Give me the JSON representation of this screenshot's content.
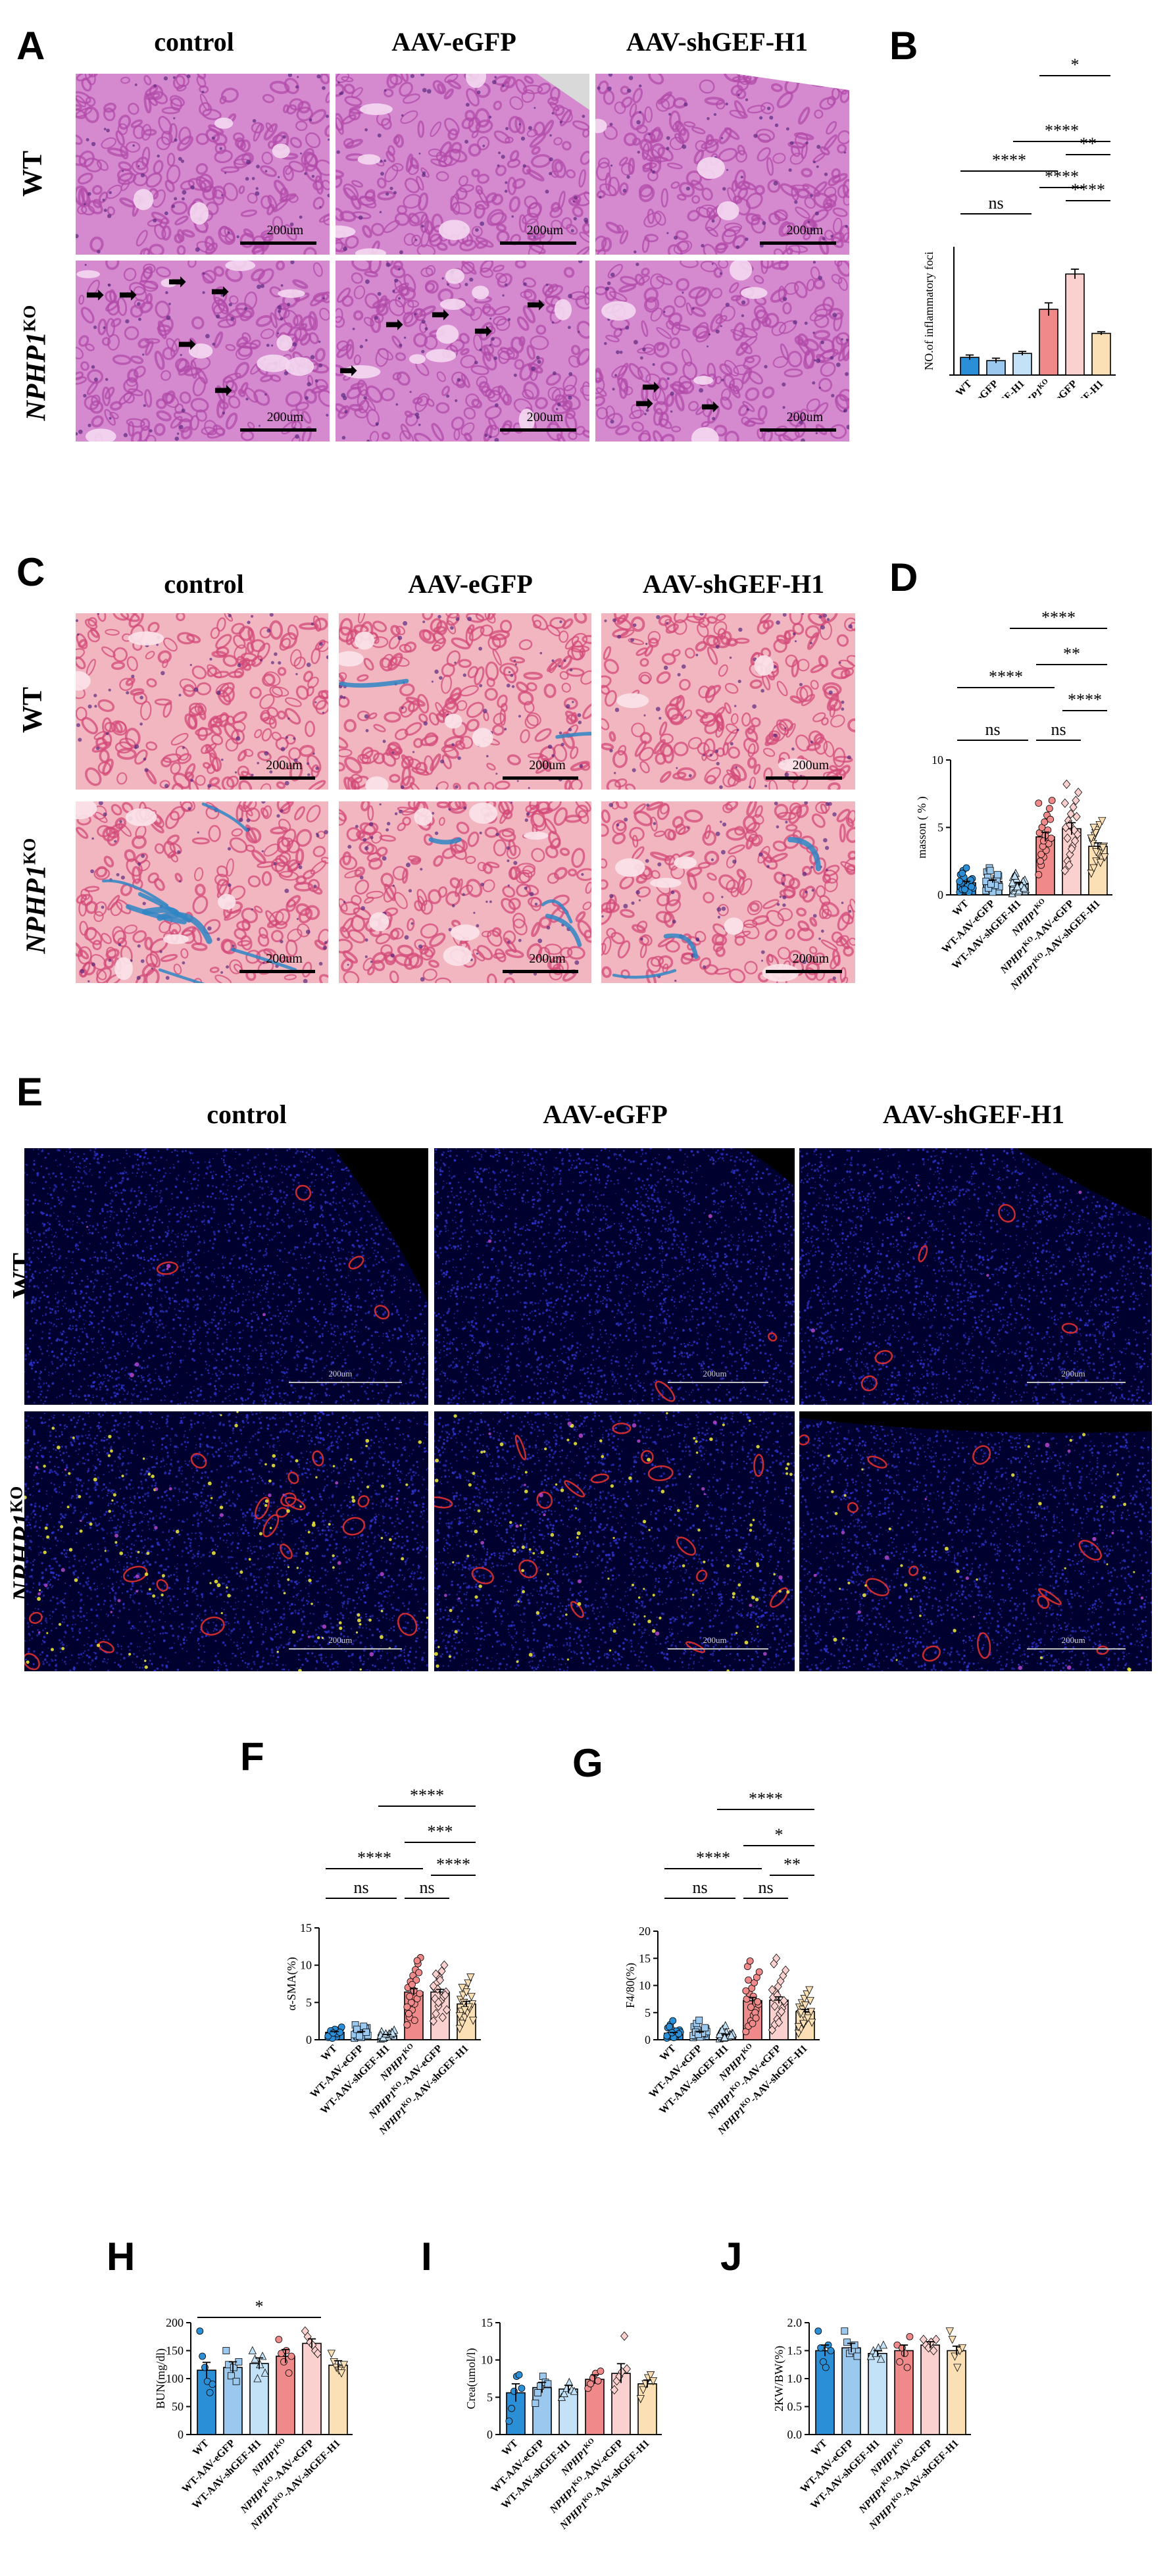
{
  "panels": {
    "A": "A",
    "B": "B",
    "C": "C",
    "D": "D",
    "E": "E",
    "F": "F",
    "G": "G",
    "H": "H",
    "I": "I",
    "J": "J"
  },
  "columns": [
    "control",
    "AAV-eGFP",
    "AAV-shGEF-H1"
  ],
  "rows": {
    "wt": "WT",
    "ko_gene": "NPHP1",
    "ko_sup": "KO"
  },
  "scalebar": "200um",
  "colors": {
    "he_bg": "#d58ad0",
    "he_tubule": "#b24aa8",
    "masson_bg": "#f2b6c0",
    "masson_tubule": "#d34a78",
    "masson_blue": "#2f86c4",
    "if_bg": "#00002e",
    "if_red": "#e0302f",
    "if_yellow": "#e6e03a",
    "wt": "#2a8fd6",
    "wt_egfp": "#9ac8ee",
    "wt_sh": "#c4e2f7",
    "ko": "#f08a8a",
    "ko_egfp": "#fbd1cf",
    "ko_sh": "#fbe0b5"
  },
  "group_labels": [
    {
      "text": "WT"
    },
    {
      "text": "WT-AAV-eGFP"
    },
    {
      "text": "WT-AAV-shGEF-H1"
    },
    {
      "gene": "NPHP1",
      "sup": "KO",
      "suffix": ""
    },
    {
      "gene": "NPHP1",
      "sup": "KO",
      "suffix": "-AAV-eGFP"
    },
    {
      "gene": "NPHP1",
      "sup": "KO",
      "suffix": "-AAV-shGEF-H1"
    }
  ],
  "chart_data": [
    {
      "panel": "B",
      "type": "bar",
      "ylabel": "NO.of inflammatory foci",
      "ylim": [
        0,
        8
      ],
      "yticks": [],
      "values": [
        1.1,
        0.9,
        1.35,
        4.1,
        6.3,
        2.6
      ],
      "errors": [
        0.15,
        0.15,
        0.12,
        0.4,
        0.3,
        0.1
      ],
      "points": [],
      "annotations": [
        {
          "from": 1,
          "to": 3,
          "label": "ns"
        },
        {
          "from": 5,
          "to": 6,
          "label": "****"
        },
        {
          "from": 1,
          "to": 4,
          "label": "****"
        },
        {
          "from": 5,
          "to": 6,
          "label": "**",
          "level": 2
        },
        {
          "from": 4,
          "to": 5,
          "label": "****"
        },
        {
          "from": 3,
          "to": 6,
          "label": "****"
        },
        {
          "from": 4,
          "to": 6,
          "label": "*"
        }
      ]
    },
    {
      "panel": "D",
      "type": "bar",
      "ylabel": "masson ( % )",
      "ylim": [
        0,
        10
      ],
      "yticks": [
        0,
        5,
        10
      ],
      "values": [
        0.9,
        1.0,
        0.8,
        4.3,
        4.9,
        3.6
      ],
      "errors": [
        0.1,
        0.1,
        0.1,
        0.35,
        0.45,
        0.25
      ],
      "points": [
        [
          0.2,
          0.4,
          0.6,
          0.8,
          1.0,
          1.2,
          1.5,
          1.8,
          0.3,
          0.7,
          1.1,
          0.5,
          0.9,
          1.3,
          2.0,
          0.2,
          0.6,
          1.0,
          1.6,
          0.4
        ],
        [
          0.3,
          0.5,
          0.8,
          1.0,
          1.2,
          1.4,
          1.7,
          2.0,
          0.4,
          0.9,
          1.1,
          0.6,
          1.3,
          1.8,
          0.2,
          0.7,
          1.5,
          1.0,
          0.5,
          0.8
        ],
        [
          0.1,
          0.3,
          0.5,
          0.7,
          0.9,
          1.1,
          1.3,
          1.6,
          0.2,
          0.6,
          1.0,
          0.4,
          0.8,
          1.2,
          0.3,
          0.7,
          0.5,
          0.9,
          1.4,
          0.6
        ],
        [
          1.5,
          2.2,
          2.8,
          3.3,
          3.8,
          4.2,
          4.6,
          5.0,
          5.4,
          5.9,
          6.4,
          7.0,
          2.5,
          3.6,
          4.4,
          4.8,
          5.6,
          6.8,
          3.0,
          4.0
        ],
        [
          1.8,
          2.5,
          3.0,
          3.6,
          4.0,
          4.5,
          5.0,
          5.5,
          6.0,
          6.5,
          7.0,
          7.6,
          8.2,
          2.2,
          3.4,
          4.8,
          5.8,
          6.8,
          4.2,
          5.2
        ],
        [
          1.6,
          2.0,
          2.5,
          3.0,
          3.3,
          3.6,
          4.0,
          4.4,
          4.8,
          5.2,
          5.5,
          2.8,
          3.8,
          4.6,
          3.1,
          2.4,
          3.5,
          4.2,
          5.0,
          3.2
        ]
      ],
      "annotations": [
        {
          "from": 1,
          "to": 3,
          "label": "ns"
        },
        {
          "from": 4,
          "to": 5,
          "label": "ns"
        },
        {
          "from": 5,
          "to": 6,
          "label": "****"
        },
        {
          "from": 1,
          "to": 4,
          "label": "****"
        },
        {
          "from": 4,
          "to": 6,
          "label": "**"
        },
        {
          "from": 3,
          "to": 6,
          "label": "****"
        }
      ]
    },
    {
      "panel": "F",
      "type": "bar",
      "ylabel": "α-SMA(%)",
      "ylim": [
        0,
        15
      ],
      "yticks": [
        0,
        5,
        10,
        15
      ],
      "values": [
        1.0,
        1.0,
        0.6,
        6.4,
        6.4,
        4.8
      ],
      "errors": [
        0.1,
        0.1,
        0.1,
        0.45,
        0.35,
        0.35
      ],
      "points": [
        [
          0.3,
          0.5,
          0.8,
          1.0,
          1.2,
          1.5,
          0.6,
          0.9,
          1.3,
          0.4,
          1.1,
          1.7,
          0.7,
          0.2,
          1.4,
          0.8,
          1.0,
          0.5,
          1.2,
          0.9
        ],
        [
          0.2,
          0.5,
          0.7,
          1.0,
          1.3,
          1.6,
          2.0,
          0.4,
          0.8,
          1.1,
          1.5,
          0.6,
          0.9,
          1.2,
          0.3,
          1.8,
          1.0,
          0.7,
          1.4,
          0.5
        ],
        [
          0.1,
          0.2,
          0.4,
          0.5,
          0.7,
          0.9,
          1.1,
          0.3,
          0.6,
          0.8,
          1.0,
          1.3,
          0.2,
          0.5,
          0.4,
          0.7,
          0.9,
          0.6,
          0.3,
          0.8
        ],
        [
          2.0,
          3.0,
          4.0,
          4.8,
          5.5,
          6.2,
          7.0,
          7.8,
          8.6,
          9.4,
          10.2,
          11.0,
          3.5,
          5.0,
          6.6,
          8.0,
          9.0,
          4.4,
          5.8,
          7.4,
          2.6,
          10.6
        ],
        [
          2.5,
          3.5,
          4.5,
          5.2,
          5.8,
          6.4,
          7.0,
          7.6,
          8.4,
          9.2,
          10.0,
          4.0,
          5.5,
          6.8,
          8.0,
          3.0,
          6.0,
          7.2,
          8.8,
          5.0
        ],
        [
          1.5,
          2.2,
          3.0,
          3.6,
          4.2,
          4.8,
          5.4,
          6.0,
          6.8,
          7.6,
          8.4,
          2.6,
          3.8,
          5.0,
          6.4,
          4.4,
          5.8,
          3.2,
          7.0,
          4.0
        ]
      ],
      "annotations": [
        {
          "from": 1,
          "to": 3,
          "label": "ns"
        },
        {
          "from": 4,
          "to": 5,
          "label": "ns"
        },
        {
          "from": 1,
          "to": 4,
          "label": "****"
        },
        {
          "from": 5,
          "to": 6,
          "label": "****"
        },
        {
          "from": 4,
          "to": 6,
          "label": "***"
        },
        {
          "from": 3,
          "to": 6,
          "label": "****"
        }
      ]
    },
    {
      "panel": "G",
      "type": "bar",
      "ylabel": "F4/80(%)",
      "ylim": [
        0,
        20
      ],
      "yticks": [
        0,
        5,
        10,
        15,
        20
      ],
      "values": [
        1.2,
        1.3,
        0.9,
        7.2,
        7.3,
        5.2
      ],
      "errors": [
        0.15,
        0.15,
        0.12,
        0.6,
        0.6,
        0.4
      ],
      "points": [
        [
          0.3,
          0.6,
          0.9,
          1.2,
          1.5,
          1.8,
          2.2,
          2.8,
          3.5,
          0.5,
          1.0,
          1.4,
          0.8,
          2.0,
          0.4,
          1.6,
          1.1,
          0.7,
          2.4,
          1.3
        ],
        [
          0.4,
          0.7,
          1.0,
          1.3,
          1.6,
          2.0,
          2.4,
          3.0,
          3.6,
          0.6,
          1.1,
          1.5,
          0.9,
          1.8,
          0.5,
          1.2,
          2.2,
          0.8,
          1.4,
          1.0
        ],
        [
          0.2,
          0.4,
          0.6,
          0.8,
          1.0,
          1.2,
          1.5,
          2.0,
          2.6,
          0.5,
          0.9,
          1.1,
          0.7,
          0.3,
          1.4,
          0.6,
          0.8,
          1.0,
          1.8,
          0.4
        ],
        [
          1.5,
          2.5,
          3.5,
          4.5,
          5.5,
          6.5,
          7.5,
          8.5,
          9.5,
          10.5,
          11.5,
          12.5,
          13.5,
          14.5,
          3.0,
          5.0,
          7.0,
          9.0,
          11.0,
          6.0,
          8.0,
          4.0
        ],
        [
          1.8,
          2.8,
          3.8,
          4.8,
          5.8,
          6.8,
          7.8,
          8.8,
          9.8,
          10.8,
          11.8,
          12.8,
          14.0,
          15.0,
          3.2,
          5.2,
          7.2,
          9.2,
          6.2,
          8.2
        ],
        [
          1.2,
          2.0,
          2.8,
          3.6,
          4.4,
          5.2,
          6.0,
          6.8,
          7.6,
          8.4,
          9.2,
          3.2,
          4.8,
          5.6,
          6.4,
          4.0,
          7.2,
          2.4,
          5.0,
          3.0
        ]
      ],
      "annotations": [
        {
          "from": 1,
          "to": 3,
          "label": "ns"
        },
        {
          "from": 4,
          "to": 5,
          "label": "ns"
        },
        {
          "from": 1,
          "to": 4,
          "label": "****"
        },
        {
          "from": 5,
          "to": 6,
          "label": "**"
        },
        {
          "from": 4,
          "to": 6,
          "label": "*"
        },
        {
          "from": 3,
          "to": 6,
          "label": "****"
        }
      ]
    },
    {
      "panel": "H",
      "type": "bar",
      "ylabel": "BUN(mg/dl)",
      "ylim": [
        0,
        200
      ],
      "yticks": [
        0,
        50,
        100,
        150,
        200
      ],
      "values": [
        115,
        120,
        127,
        140,
        163,
        124
      ],
      "errors": [
        14,
        10,
        10,
        12,
        8,
        8
      ],
      "points": [
        [
          185,
          140,
          120,
          95,
          75,
          90
        ],
        [
          150,
          125,
          105,
          120,
          95,
          130
        ],
        [
          150,
          135,
          100,
          125,
          140,
          110
        ],
        [
          170,
          145,
          130,
          150,
          110,
          140
        ],
        [
          185,
          175,
          165,
          160,
          150,
          145
        ],
        [
          145,
          130,
          120,
          115,
          110,
          125
        ]
      ],
      "annotations": [
        {
          "from": 1,
          "to": 5,
          "label": "*"
        }
      ]
    },
    {
      "panel": "I",
      "type": "bar",
      "ylabel": "Crea(umol/l)",
      "ylim": [
        0,
        15
      ],
      "yticks": [
        0,
        5,
        10,
        15
      ],
      "values": [
        5.6,
        6.3,
        6.1,
        7.4,
        8.2,
        6.8
      ],
      "errors": [
        1.2,
        0.7,
        0.5,
        0.6,
        1.3,
        0.5
      ],
      "points": [
        [
          1.8,
          3.5,
          5.8,
          7.8,
          8.0,
          6.2
        ],
        [
          4.2,
          5.6,
          6.5,
          7.8,
          7.0,
          6.8
        ],
        [
          5.0,
          5.5,
          6.2,
          7.0,
          6.0,
          5.8
        ],
        [
          6.2,
          6.8,
          7.6,
          8.2,
          7.2,
          8.5
        ],
        [
          6.0,
          7.2,
          7.8,
          8.4,
          13.2,
          8.8
        ],
        [
          4.8,
          6.0,
          6.8,
          7.6,
          8.0,
          7.2
        ]
      ],
      "annotations": []
    },
    {
      "panel": "J",
      "type": "bar",
      "ylabel": "2KW/BW(%)",
      "ylim": [
        0,
        2.0
      ],
      "yticks": [
        0.0,
        0.5,
        1.0,
        1.5,
        2.0
      ],
      "values": [
        1.5,
        1.55,
        1.45,
        1.5,
        1.6,
        1.5
      ],
      "errors": [
        0.1,
        0.08,
        0.05,
        0.1,
        0.06,
        0.08
      ],
      "points": [
        [
          1.85,
          1.55,
          1.3,
          1.2,
          1.6,
          1.5
        ],
        [
          1.85,
          1.65,
          1.45,
          1.5,
          1.6,
          1.4
        ],
        [
          1.4,
          1.5,
          1.45,
          1.55,
          1.35,
          1.6
        ],
        [
          1.6,
          1.3,
          1.55,
          1.45,
          1.2,
          1.75
        ],
        [
          1.7,
          1.6,
          1.55,
          1.65,
          1.5,
          1.7
        ],
        [
          1.85,
          1.7,
          1.4,
          1.2,
          1.5,
          1.55
        ]
      ],
      "annotations": []
    }
  ]
}
